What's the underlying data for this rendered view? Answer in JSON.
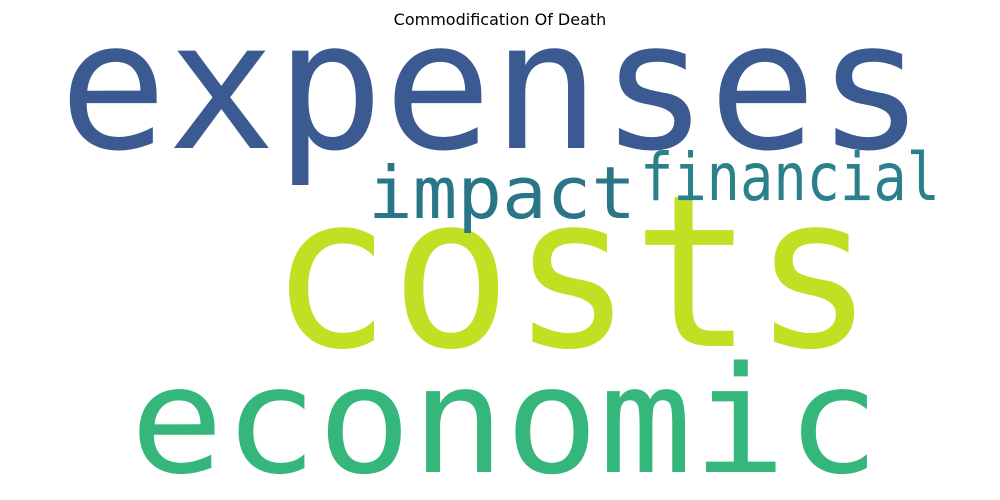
{
  "title": "Commodification Of Death",
  "chart_data": {
    "type": "wordcloud",
    "title": "Commodification Of Death",
    "words": [
      {
        "text": "expenses",
        "weight": 1.0,
        "color": "#3b5a91"
      },
      {
        "text": "costs",
        "weight": 1.0,
        "color": "#c3df23"
      },
      {
        "text": "economic",
        "weight": 0.9,
        "color": "#35b67b"
      },
      {
        "text": "financial",
        "weight": 0.4,
        "color": "#2a8189"
      },
      {
        "text": "impact",
        "weight": 0.45,
        "color": "#2a7689"
      }
    ]
  }
}
